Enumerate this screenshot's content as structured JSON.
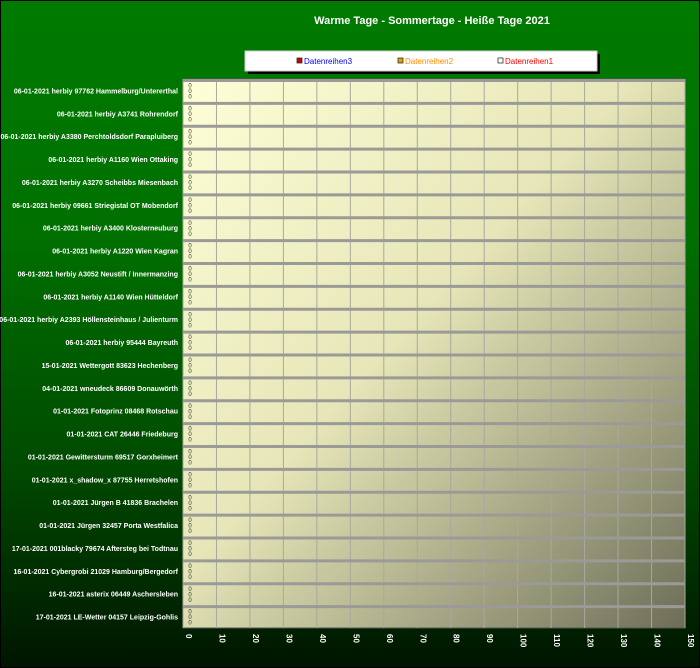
{
  "chart_data": {
    "type": "bar",
    "orientation": "horizontal",
    "title": "Warme Tage - Sommertage - Heiße Tage 2021",
    "xlabel": "",
    "ylabel": "",
    "xlim": [
      0,
      150
    ],
    "x_ticks": [
      "0",
      "10",
      "20",
      "30",
      "40",
      "50",
      "60",
      "70",
      "80",
      "90",
      "100",
      "110",
      "120",
      "130",
      "140",
      "150"
    ],
    "grid": true,
    "legend_position": "top",
    "background_color": "#007a00",
    "categories": [
      "06-01-2021 herbiy 97762 Hammelburg/Untererthal",
      "06-01-2021 herbiy A3741 Rohrendorf",
      "06-01-2021 herbiy A3380 Perchtoldsdorf Parapluiberg",
      "06-01-2021 herbiy A1160 Wien Ottaking",
      "06-01-2021 herbiy A3270 Scheibbs Miesenbach",
      "06-01-2021 herbiy 09661 Striegistal OT Mobendorf",
      "06-01-2021 herbiy A3400 Klosterneuburg",
      "06-01-2021 herbiy A1220 Wien Kagran",
      "06-01-2021 herbiy A3052 Neustift / Innermanzing",
      "06-01-2021 herbiy A1140 Wien Hütteldorf",
      "06-01-2021 herbiy A2393 Höllensteinhaus / Julienturm",
      "06-01-2021 herbiy 95444 Bayreuth",
      "15-01-2021 Wettergott 83623 Hechenberg",
      "04-01-2021 wneudeck 86609 Donauwörth",
      "01-01-2021 Fotoprinz 08468 Rotschau",
      "01-01-2021 CAT 26446 Friedeburg",
      "01-01-2021 Gewittersturm 69517 Gorxheimert",
      "01-01-2021 x_shadow_x 87755 Herretshofen",
      "01-01-2021 Jürgen B 41836 Brachelen",
      "01-01-2021 Jürgen 32457 Porta Westfalica",
      "17-01-2021 001blacky 79674 Aftersteg bei Todtnau",
      "16-01-2021 Cybergrobi 21029 Hamburg/Bergedorf",
      "16-01-2021 asterix 06449 Aschersleben",
      "17-01-2021 LE-Wetter 04157 Leipzig-Gohlis"
    ],
    "series": [
      {
        "name": "Datenreihen3",
        "color": "#cc0000",
        "label_color": "#0000ff",
        "values": [
          0,
          0,
          0,
          0,
          0,
          0,
          0,
          0,
          0,
          0,
          0,
          0,
          0,
          0,
          0,
          0,
          0,
          0,
          0,
          0,
          0,
          0,
          0,
          0
        ]
      },
      {
        "name": "Datenreihen2",
        "color": "#e0a000",
        "label_color": "#ff8c00",
        "values": [
          0,
          0,
          0,
          0,
          0,
          0,
          0,
          0,
          0,
          0,
          0,
          0,
          0,
          0,
          0,
          0,
          0,
          0,
          0,
          0,
          0,
          0,
          0,
          0
        ]
      },
      {
        "name": "Datenreihen1",
        "color": "#ffffff",
        "label_color": "#ff0000",
        "values": [
          0,
          0,
          0,
          0,
          0,
          0,
          0,
          0,
          0,
          0,
          0,
          0,
          0,
          0,
          0,
          0,
          0,
          0,
          0,
          0,
          0,
          0,
          0,
          0
        ]
      }
    ]
  }
}
